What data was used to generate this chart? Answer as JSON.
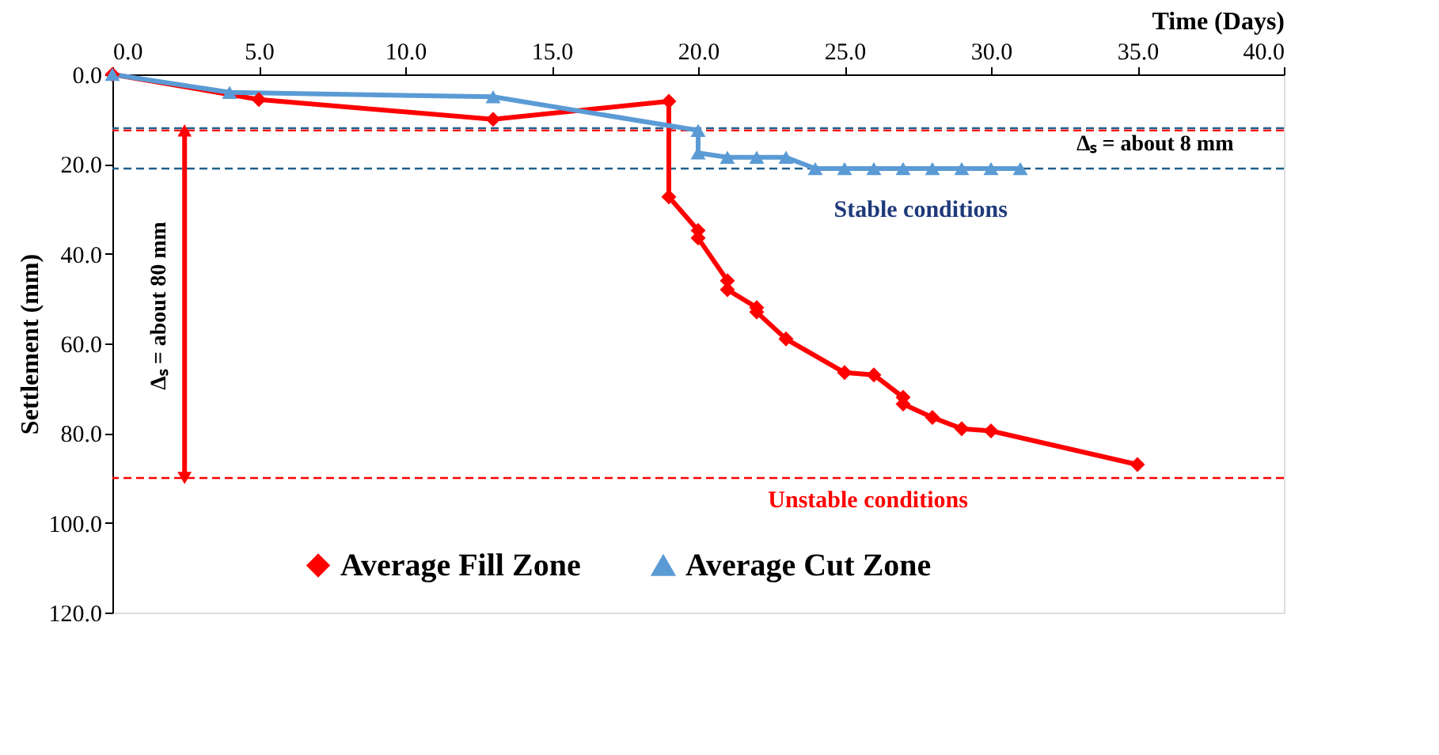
{
  "chart_data": {
    "type": "line",
    "xlabel": "Time (Days)",
    "ylabel": "Settlement (mm)",
    "xlim": [
      0,
      40
    ],
    "xticks": [
      {
        "value": 0,
        "label": "0.0"
      },
      {
        "value": 5,
        "label": "5.0"
      },
      {
        "value": 10,
        "label": "10.0"
      },
      {
        "value": 15,
        "label": "15.0"
      },
      {
        "value": 20,
        "label": "20.0"
      },
      {
        "value": 25,
        "label": "25.0"
      },
      {
        "value": 30,
        "label": "30.0"
      },
      {
        "value": 35,
        "label": "35.0"
      },
      {
        "value": 40,
        "label": "40.0"
      }
    ],
    "ylim": [
      120,
      0
    ],
    "yticks": [
      {
        "value": 0,
        "label": "0.0"
      },
      {
        "value": 20,
        "label": "20.0"
      },
      {
        "value": 40,
        "label": "40.0"
      },
      {
        "value": 60,
        "label": "60.0"
      },
      {
        "value": 80,
        "label": "80.0"
      },
      {
        "value": 100,
        "label": "100.0"
      },
      {
        "value": 120,
        "label": "120.0"
      }
    ],
    "series": [
      {
        "name": "Average Fill Zone",
        "color": "#ff0000",
        "marker": "diamond",
        "x": [
          0,
          5,
          13,
          19,
          19,
          20,
          20,
          21,
          21,
          22,
          22,
          23,
          25,
          26,
          27,
          27,
          28,
          29,
          30,
          35
        ],
        "values": [
          0,
          5.6,
          10,
          6,
          27.3,
          34.8,
          36.5,
          46,
          48,
          52,
          53,
          59,
          66.5,
          67,
          72,
          73.5,
          76.5,
          79,
          79.5,
          87
        ]
      },
      {
        "name": "Average Cut Zone",
        "color": "#5b9bd5",
        "marker": "triangle",
        "x": [
          0,
          4,
          13,
          20,
          20,
          21,
          22,
          23,
          24,
          25,
          26,
          27,
          28,
          29,
          30,
          31
        ],
        "values": [
          0,
          4,
          5,
          12.5,
          17.5,
          18.5,
          18.5,
          18.5,
          21,
          21,
          21,
          21,
          21,
          21,
          21,
          21
        ]
      }
    ],
    "ref_lines": [
      {
        "axis": "y",
        "value": 12.5,
        "color": "#ff0000",
        "line_style": "dashed"
      },
      {
        "axis": "y",
        "value": 90,
        "color": "#ff0000",
        "line_style": "dashed"
      },
      {
        "axis": "y",
        "value": 12,
        "color": "#1f5f8b",
        "line_style": "dashed"
      },
      {
        "axis": "y",
        "value": 21,
        "color": "#1f5f8b",
        "line_style": "dashed"
      }
    ],
    "annotations": [
      "Δₛ = about 80 mm",
      "Δₛ = about 8 mm",
      "Stable conditions",
      "Unstable conditions"
    ],
    "legend": "bottom",
    "grid": false,
    "line_style": "solid"
  }
}
